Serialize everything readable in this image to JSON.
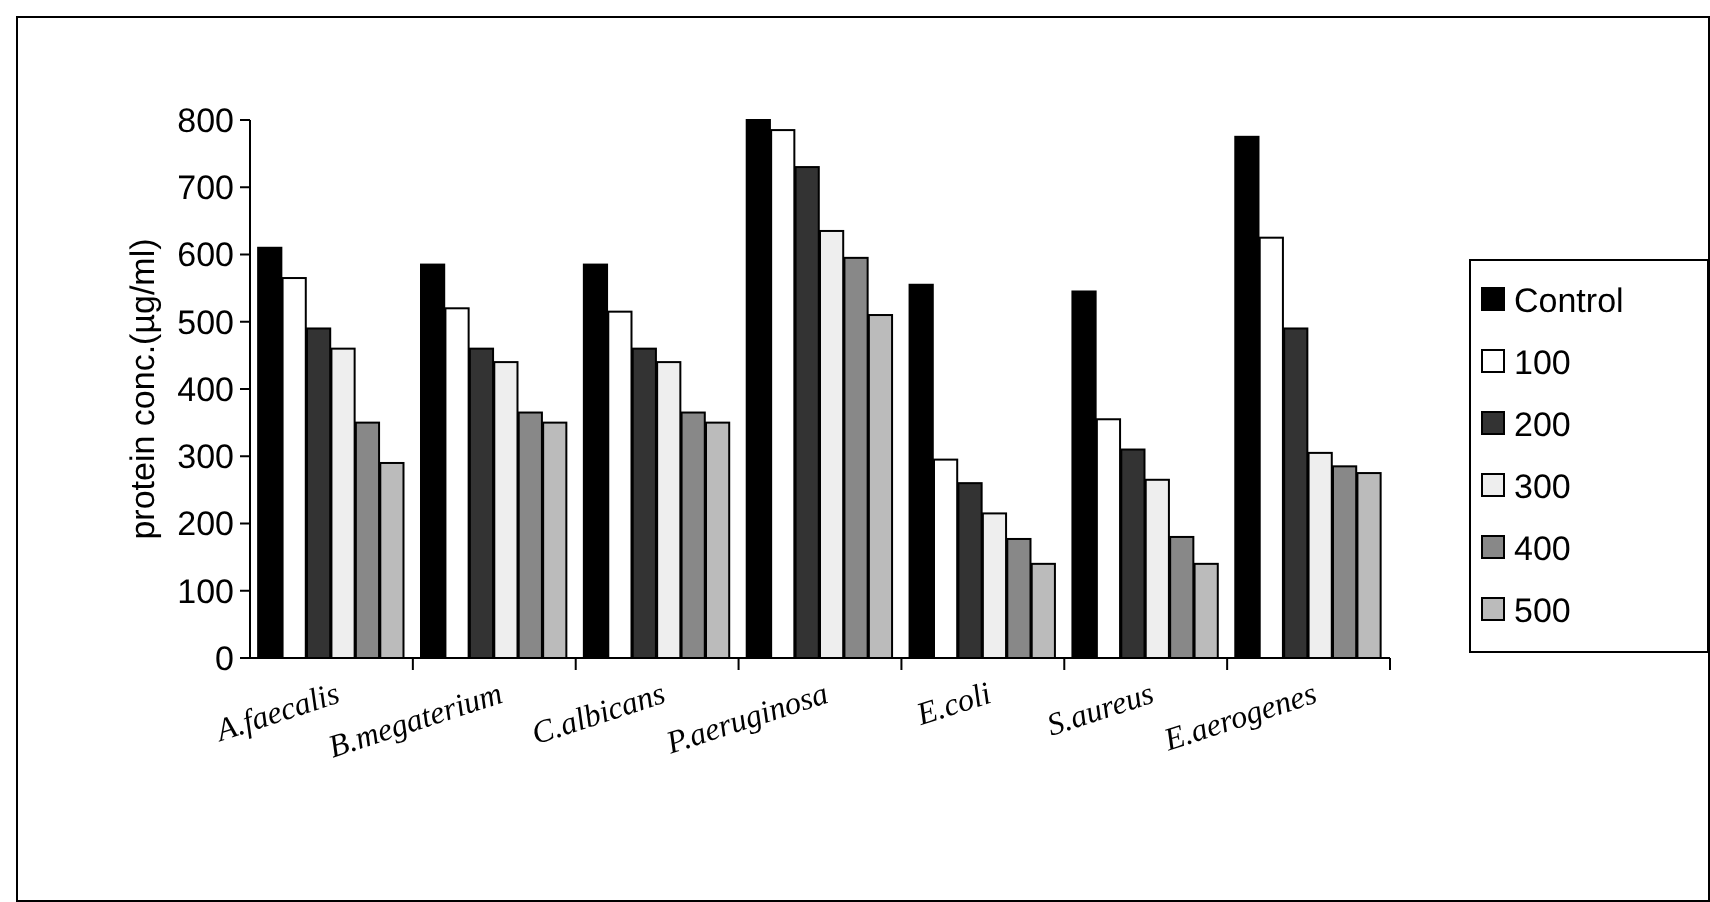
{
  "chart_data": {
    "type": "bar",
    "ylabel": "protein conc.(µg/ml)",
    "categories": [
      "A.faecalis",
      "B.megaterium",
      "C.albicans",
      "P.aeruginosa",
      "E.coli",
      "S.aureus",
      "E.aerogenes"
    ],
    "series": [
      {
        "name": "Control",
        "color": "#000000",
        "values": [
          610,
          585,
          585,
          800,
          555,
          545,
          775
        ]
      },
      {
        "name": "100",
        "color": "#ffffff",
        "values": [
          565,
          520,
          515,
          785,
          295,
          355,
          625
        ]
      },
      {
        "name": "200",
        "color": "#333333",
        "values": [
          490,
          460,
          460,
          730,
          260,
          310,
          490
        ]
      },
      {
        "name": "300",
        "color": "#eeeeee",
        "values": [
          460,
          440,
          440,
          635,
          215,
          265,
          305
        ]
      },
      {
        "name": "400",
        "color": "#888888",
        "values": [
          350,
          365,
          365,
          595,
          177,
          180,
          285
        ]
      },
      {
        "name": "500",
        "color": "#bbbbbb",
        "values": [
          290,
          350,
          350,
          510,
          140,
          140,
          275
        ]
      }
    ],
    "ylim": [
      0,
      800
    ],
    "yticks": [
      0,
      100,
      200,
      300,
      400,
      500,
      600,
      700,
      800
    ],
    "grid": false,
    "legend": "right"
  }
}
